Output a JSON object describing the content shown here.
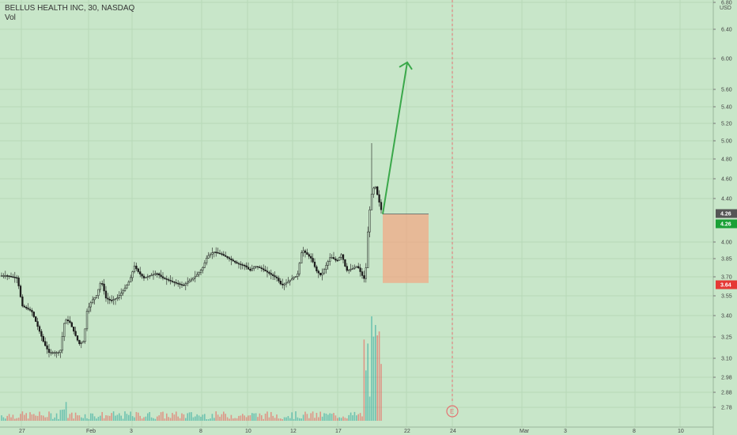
{
  "header": {
    "symbol_line": "BELLUS HEALTH INC, 30, NASDAQ",
    "indicator": "Vol"
  },
  "chart_data": {
    "type": "candlestick",
    "title": "BELLUS HEALTH INC, 30, NASDAQ",
    "indicator": "Vol",
    "currency": "USD",
    "y_scale": "log",
    "ylim": [
      2.7,
      6.8
    ],
    "y_ticks": [
      "6.80",
      "6.40",
      "6.00",
      "5.60",
      "5.40",
      "5.20",
      "5.00",
      "4.80",
      "4.60",
      "4.40",
      "4.26",
      "4.00",
      "3.85",
      "3.70",
      "3.55",
      "3.40",
      "3.25",
      "3.10",
      "2.98",
      "2.88",
      "2.78"
    ],
    "x_ticks": [
      "27",
      "Feb",
      "3",
      "8",
      "10",
      "12",
      "17",
      "22",
      "24",
      "Mar",
      "3",
      "8",
      "10"
    ],
    "price_badges": [
      {
        "label": "4.26",
        "color": "#555555"
      },
      {
        "label": "4.26",
        "color": "#1aa036"
      },
      {
        "label": "3.64",
        "color": "#e53935"
      }
    ],
    "earnings_marker": "E",
    "annotations": {
      "arrow": {
        "from_price": 4.26,
        "to_price": 5.95
      },
      "box": {
        "top_price": 4.26,
        "bottom_price": 3.66
      }
    },
    "colors": {
      "up": "#26a69a",
      "down": "#ef5350",
      "candle_body": "#1b1b1b",
      "arrow": "#3aa84a",
      "box": "#f4a582",
      "background": "#c8e6c9"
    },
    "candles": []
  }
}
